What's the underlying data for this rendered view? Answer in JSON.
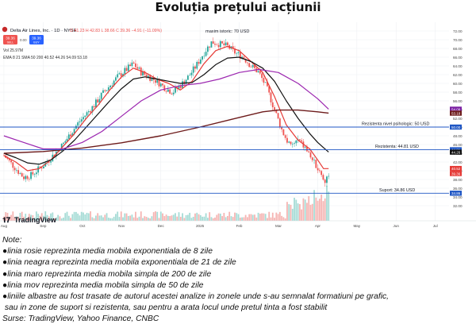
{
  "title": "Evoluția prețului acțiunii",
  "header": {
    "symbol": "Delta Air Lines, Inc. · 1D · NYSE",
    "ohlc": "O 41.23  H 42.83  L 38.66  C 39.36  −4.91 (−11.09%)",
    "sell_price": "39.36",
    "sell_label": "SELL",
    "spread": "0.00",
    "buy_price": "39.36",
    "buy_label": "BUY",
    "vol": "Vol  25.97M",
    "indicators": "EMA 8 21  SMA 50 200  40.52  44.26  54.09  53.18"
  },
  "chart_data": {
    "type": "line",
    "ylim": [
      30,
      74
    ],
    "y_ticks": [
      72.0,
      70.0,
      68.0,
      66.0,
      64.0,
      62.0,
      60.0,
      58.0,
      56.0,
      54.0,
      52.0,
      50.0,
      48.0,
      46.0,
      44.0,
      42.0,
      40.0,
      38.0,
      36.0,
      34.0,
      32.0
    ],
    "x_ticks": [
      "Aug",
      "Sep",
      "Oct",
      "Nov",
      "Dec",
      "2025",
      "Feb",
      "Mar",
      "Apr",
      "May",
      "Jun",
      "Jul"
    ],
    "x_tick_pos": [
      0,
      1,
      2,
      3,
      4,
      5,
      6,
      7,
      8,
      9,
      10,
      11
    ],
    "x_range": [
      -0.1,
      11.35
    ],
    "price_end": 8.28,
    "levels": [
      {
        "value": 50,
        "label": "Rezistenta nivel psihologic: 50 USD",
        "color": "#1f56c4"
      },
      {
        "value": 44.81,
        "label": "Rezistenta: 44.81 USD",
        "color": "#1f56c4"
      },
      {
        "value": 34.86,
        "label": "Suport: 34.86 USD",
        "color": "#1f56c4"
      }
    ],
    "annotations": [
      {
        "text": "maxim istoric: 70 USD",
        "x": 5.7,
        "y": 71.6
      }
    ],
    "axis_badges": [
      {
        "value": 54.09,
        "text": "54.09",
        "color": "#7b1fa2"
      },
      {
        "value": 53.18,
        "text": "53.18",
        "color": "#6d1b1b"
      },
      {
        "value": 50.0,
        "text": "50.00",
        "color": "#1f56c4"
      },
      {
        "value": 44.81,
        "text": "44.81",
        "color": "#1f56c4"
      },
      {
        "value": 44.26,
        "text": "44.26",
        "color": "#111111"
      },
      {
        "value": 40.52,
        "text": "40.52",
        "color": "#e53935"
      },
      {
        "value": 39.36,
        "text": "39.36",
        "color": "#e53935"
      },
      {
        "value": 34.86,
        "text": "34.86",
        "color": "#1f56c4"
      }
    ],
    "series": [
      {
        "key": "price",
        "color": "#26a69a",
        "x": [
          0.0,
          0.2,
          0.35,
          0.5,
          0.7,
          0.9,
          1.1,
          1.3,
          1.5,
          1.7,
          1.9,
          2.1,
          2.3,
          2.5,
          2.7,
          2.9,
          3.1,
          3.3,
          3.5,
          3.7,
          3.9,
          4.1,
          4.3,
          4.5,
          4.7,
          4.9,
          5.1,
          5.3,
          5.5,
          5.7,
          5.9,
          6.1,
          6.3,
          6.5,
          6.7,
          6.9,
          7.1,
          7.3,
          7.5,
          7.7,
          7.9,
          8.1,
          8.2,
          8.28
        ],
        "values": [
          43.5,
          41.5,
          40.0,
          38.5,
          39.0,
          40.5,
          42.0,
          44.0,
          46.0,
          48.5,
          51.0,
          53.0,
          55.0,
          57.5,
          59.5,
          61.5,
          63.0,
          64.5,
          62.5,
          61.5,
          60.5,
          59.0,
          58.0,
          59.5,
          61.5,
          64.0,
          67.0,
          69.5,
          69.0,
          68.5,
          67.0,
          66.0,
          64.0,
          62.5,
          59.0,
          54.0,
          49.0,
          45.5,
          47.0,
          45.0,
          42.0,
          39.0,
          37.5,
          39.4
        ]
      },
      {
        "key": "ema8",
        "name": "EMA 8",
        "color": "#e53935",
        "x": [
          0.0,
          0.3,
          0.6,
          0.9,
          1.2,
          1.5,
          1.8,
          2.1,
          2.4,
          2.7,
          3.0,
          3.3,
          3.6,
          3.9,
          4.2,
          4.5,
          4.8,
          5.1,
          5.4,
          5.7,
          6.0,
          6.3,
          6.6,
          6.9,
          7.2,
          7.5,
          7.8,
          8.0,
          8.15,
          8.28
        ],
        "values": [
          43.5,
          42.0,
          40.0,
          40.5,
          42.5,
          45.5,
          48.5,
          52.0,
          55.0,
          58.5,
          61.5,
          63.5,
          62.5,
          61.0,
          60.0,
          58.5,
          60.5,
          64.5,
          67.5,
          68.5,
          67.5,
          65.0,
          62.5,
          57.0,
          50.5,
          47.0,
          45.0,
          42.5,
          40.5,
          40.5
        ]
      },
      {
        "key": "ema21",
        "name": "EMA 21",
        "color": "#111111",
        "x": [
          0.0,
          0.3,
          0.6,
          0.9,
          1.2,
          1.5,
          1.8,
          2.1,
          2.4,
          2.7,
          3.0,
          3.3,
          3.6,
          3.9,
          4.2,
          4.5,
          4.8,
          5.1,
          5.4,
          5.7,
          6.0,
          6.3,
          6.6,
          6.9,
          7.2,
          7.5,
          7.8,
          8.0,
          8.15,
          8.28
        ],
        "values": [
          44.0,
          43.0,
          41.8,
          41.5,
          42.5,
          44.5,
          47.0,
          50.0,
          53.0,
          56.0,
          58.8,
          61.0,
          61.5,
          61.0,
          60.5,
          60.0,
          60.2,
          62.0,
          64.3,
          65.8,
          66.0,
          65.0,
          63.5,
          60.5,
          56.0,
          52.0,
          48.5,
          46.5,
          45.3,
          44.3
        ]
      },
      {
        "key": "sma50",
        "name": "SMA 50",
        "color": "#9c27b0",
        "x": [
          0.0,
          0.5,
          1.0,
          1.5,
          2.0,
          2.5,
          3.0,
          3.5,
          4.0,
          4.5,
          5.0,
          5.5,
          6.0,
          6.5,
          7.0,
          7.5,
          8.0,
          8.28
        ],
        "values": [
          48.0,
          46.5,
          45.0,
          45.0,
          46.5,
          49.0,
          52.5,
          56.0,
          58.5,
          59.5,
          60.0,
          61.0,
          62.5,
          63.2,
          62.5,
          60.0,
          56.5,
          54.1
        ]
      },
      {
        "key": "sma200",
        "name": "SMA 200",
        "color": "#6d1b1b",
        "x": [
          0.0,
          1.0,
          2.0,
          3.0,
          4.0,
          5.0,
          6.0,
          6.6,
          7.0,
          7.5,
          8.0,
          8.28
        ],
        "values": [
          44.0,
          44.4,
          45.2,
          46.4,
          48.0,
          50.0,
          52.2,
          53.5,
          53.9,
          53.9,
          53.5,
          53.2
        ]
      }
    ]
  },
  "notes": {
    "heading": "Note:",
    "items": [
      "●linia rosie reprezinta media mobila exponentiala de 8 zile",
      "●linia neagra reprezinta media mobila exponentiala de 21 de zile",
      "●linia maro reprezinta media mobila simpla de 200 de zile",
      "●linia mov reprezinta media mobila simpla de 50 de zile",
      "●liniile albastre au fost trasate de autorul acestei analize in zonele unde s-au semnalat formatiuni pe grafic,",
      " sau in zone de suport si rezistenta, sau pentru a arata locul unde pretul tinta a fost stabilit"
    ],
    "source": "Surse: TradingView, Yahoo Finance, CNBC"
  },
  "logo_text": "TradingView",
  "colors": {
    "up": "#26a69a",
    "down": "#ef5350",
    "level": "#1f56c4",
    "grid": "#eef0f3"
  }
}
